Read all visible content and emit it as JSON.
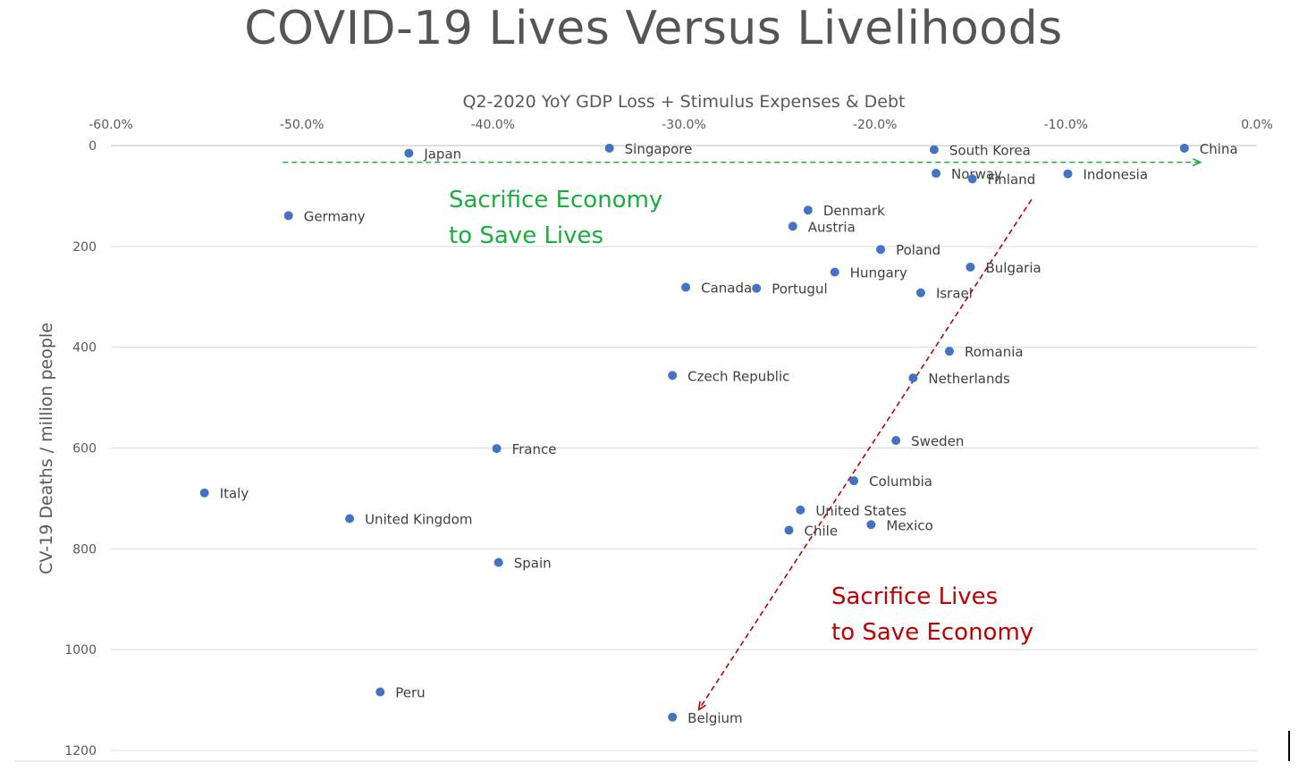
{
  "page": {
    "title": "COVID-19 Lives Versus Livelihoods"
  },
  "chart_data": {
    "type": "scatter",
    "title": "COVID-19 Lives Versus Livelihoods",
    "xlabel": "Q2-2020 YoY GDP Loss + Stimulus Expenses & Debt",
    "ylabel": "CV-19 Deaths / million people",
    "x_axis_position": "top",
    "y_axis_inverted": true,
    "xlim": [
      -60,
      0
    ],
    "ylim": [
      0,
      1200
    ],
    "x_ticks": [
      -60,
      -50,
      -40,
      -30,
      -20,
      -10,
      0
    ],
    "x_tick_labels": [
      "-60.0%",
      "-50.0%",
      "-40.0%",
      "-30.0%",
      "-20.0%",
      "-10.0%",
      "0.0%"
    ],
    "y_ticks": [
      0,
      200,
      400,
      600,
      800,
      1000,
      1200
    ],
    "y_tick_labels": [
      "0",
      "200",
      "400",
      "600",
      "800",
      "1000",
      "1200"
    ],
    "marker_color": "#4472C4",
    "grid": true,
    "points": [
      {
        "label": "Japan",
        "x": -44.4,
        "y": 15
      },
      {
        "label": "Singapore",
        "x": -33.9,
        "y": 5
      },
      {
        "label": "South Korea",
        "x": -16.9,
        "y": 8
      },
      {
        "label": "China",
        "x": -3.8,
        "y": 5
      },
      {
        "label": "Norway",
        "x": -16.8,
        "y": 55
      },
      {
        "label": "Finland",
        "x": -14.9,
        "y": 66
      },
      {
        "label": "Indonesia",
        "x": -9.9,
        "y": 56
      },
      {
        "label": "Germany",
        "x": -50.7,
        "y": 139
      },
      {
        "label": "Denmark",
        "x": -23.5,
        "y": 128
      },
      {
        "label": "Austria",
        "x": -24.3,
        "y": 160
      },
      {
        "label": "Poland",
        "x": -19.7,
        "y": 206
      },
      {
        "label": "Bulgaria",
        "x": -15.0,
        "y": 241
      },
      {
        "label": "Hungary",
        "x": -22.1,
        "y": 251
      },
      {
        "label": "Canada",
        "x": -29.9,
        "y": 281
      },
      {
        "label": "Portugul",
        "x": -26.2,
        "y": 283
      },
      {
        "label": "Israel",
        "x": -17.6,
        "y": 292
      },
      {
        "label": "Romania",
        "x": -16.1,
        "y": 408
      },
      {
        "label": "Czech Republic",
        "x": -30.6,
        "y": 456
      },
      {
        "label": "Netherlands",
        "x": -18.0,
        "y": 461
      },
      {
        "label": "Sweden",
        "x": -18.9,
        "y": 585
      },
      {
        "label": "France",
        "x": -39.8,
        "y": 601
      },
      {
        "label": "Italy",
        "x": -55.1,
        "y": 689
      },
      {
        "label": "Columbia",
        "x": -21.1,
        "y": 665
      },
      {
        "label": "United Kingdom",
        "x": -47.5,
        "y": 740
      },
      {
        "label": "United States",
        "x": -23.9,
        "y": 723
      },
      {
        "label": "Chile",
        "x": -24.5,
        "y": 763
      },
      {
        "label": "Mexico",
        "x": -20.2,
        "y": 752
      },
      {
        "label": "Spain",
        "x": -39.7,
        "y": 827
      },
      {
        "label": "Peru",
        "x": -45.9,
        "y": 1084
      },
      {
        "label": "Belgium",
        "x": -30.6,
        "y": 1134
      }
    ],
    "annotations": [
      {
        "name": "sacrifice-economy",
        "lines": [
          "Sacrifice Economy",
          "to Save Lives"
        ],
        "color": "#1AAE3E",
        "arrow": {
          "style": "dashed",
          "from": [
            -51,
            33
          ],
          "to": [
            -3,
            33
          ]
        }
      },
      {
        "name": "sacrifice-lives",
        "lines": [
          "Sacrifice Lives",
          "to Save Economy"
        ],
        "color": "#C00000",
        "arrow": {
          "style": "dashed",
          "from": [
            -11.8,
            107
          ],
          "to": [
            -29.2,
            1118
          ]
        }
      }
    ]
  }
}
